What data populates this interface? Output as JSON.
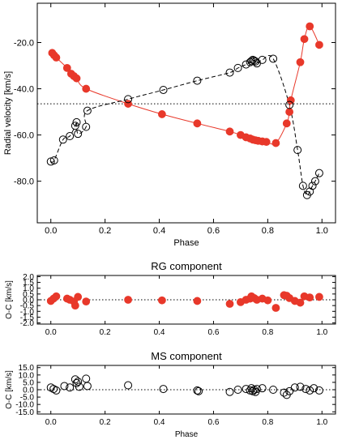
{
  "colors": {
    "primary": "#e8382a",
    "secondary": "#000000",
    "axis": "#000000"
  },
  "chart_data": [
    {
      "type": "scatter",
      "xlabel": "Phase",
      "ylabel": "Radial velocity [km/s]",
      "xlim": [
        -0.05,
        1.05
      ],
      "ylim": [
        -98,
        -3
      ],
      "xticks": [
        0.0,
        0.2,
        0.4,
        0.6,
        0.8,
        1.0
      ],
      "xtick_labels": [
        "0.0",
        "0.2",
        "0.4",
        "0.6",
        "0.8",
        "1.0"
      ],
      "yticks": [
        -80,
        -60,
        -40,
        -20
      ],
      "ytick_labels": [
        "-80.0",
        "-60.0",
        "-40.0",
        "-20.0"
      ],
      "reference_line": -46.5,
      "series": [
        {
          "style": "filled",
          "color": "#e8382a",
          "x": [
            0.005,
            0.012,
            0.02,
            0.06,
            0.075,
            0.085,
            0.095,
            0.13,
            0.285,
            0.41,
            0.54,
            0.66,
            0.7,
            0.72,
            0.735,
            0.745,
            0.755,
            0.765,
            0.78,
            0.795,
            0.83,
            0.87,
            0.88,
            0.885,
            0.92,
            0.935,
            0.955,
            0.99
          ],
          "y": [
            -24.5,
            -25.5,
            -26.5,
            -31.0,
            -33.5,
            -34.5,
            -35.5,
            -40.0,
            -46.5,
            -51.0,
            -55.0,
            -58.5,
            -60.0,
            -61.0,
            -61.5,
            -62.0,
            -62.3,
            -62.5,
            -62.8,
            -63.0,
            -63.5,
            -55.0,
            -50.0,
            -45.0,
            -28.5,
            -18.5,
            -13.0,
            -21.0
          ]
        },
        {
          "style": "open",
          "color": "#000000",
          "x": [
            0.0,
            0.012,
            0.045,
            0.07,
            0.09,
            0.095,
            0.1,
            0.13,
            0.135,
            0.285,
            0.415,
            0.54,
            0.66,
            0.69,
            0.72,
            0.735,
            0.74,
            0.745,
            0.75,
            0.755,
            0.76,
            0.78,
            0.82,
            0.88,
            0.91,
            0.93,
            0.945,
            0.955,
            0.965,
            0.975,
            0.99
          ],
          "y": [
            -71.5,
            -71.0,
            -62.0,
            -60.5,
            -56.0,
            -54.5,
            -59.5,
            -56.5,
            -49.5,
            -44.5,
            -40.5,
            -36.5,
            -33.0,
            -31.0,
            -29.5,
            -28.5,
            -28.0,
            -27.5,
            -27.8,
            -28.2,
            -29.0,
            -27.5,
            -27.0,
            -47.0,
            -66.5,
            -82.0,
            -86.0,
            -84.5,
            -82.0,
            -80.0,
            -76.5
          ]
        }
      ]
    },
    {
      "type": "scatter",
      "title": "RG component",
      "xlabel": "",
      "ylabel": "O-C [km/s]",
      "xlim": [
        -0.05,
        1.05
      ],
      "ylim": [
        -2.1,
        2.1
      ],
      "xticks": [
        0.0,
        0.2,
        0.4,
        0.6,
        0.8,
        1.0
      ],
      "xtick_labels": [
        "0.0",
        "0.2",
        "0.4",
        "0.6",
        "0.8",
        "1.0"
      ],
      "yticks": [
        -2.0,
        -1.5,
        -1.0,
        -0.5,
        0.0,
        0.5,
        1.0,
        1.5,
        2.0
      ],
      "ytick_labels": [
        "-2.0",
        "-1.5",
        "-1.0",
        "-0.5",
        "0.0",
        "0.5",
        "1.0",
        "1.5",
        "2.0"
      ],
      "reference_line": 0.0,
      "series": [
        {
          "style": "filled",
          "color": "#e8382a",
          "x": [
            0.0,
            0.01,
            0.02,
            0.06,
            0.07,
            0.085,
            0.09,
            0.1,
            0.13,
            0.285,
            0.41,
            0.54,
            0.66,
            0.7,
            0.72,
            0.735,
            0.74,
            0.75,
            0.76,
            0.78,
            0.8,
            0.83,
            0.86,
            0.87,
            0.88,
            0.9,
            0.92,
            0.935,
            0.955,
            0.99
          ],
          "y": [
            -0.1,
            0.1,
            0.3,
            0.1,
            0.0,
            -0.15,
            -0.5,
            0.25,
            -0.15,
            0.0,
            -0.05,
            -0.1,
            -0.35,
            -0.2,
            0.0,
            0.1,
            0.3,
            0.15,
            0.0,
            0.1,
            -0.05,
            -0.7,
            0.4,
            0.35,
            0.15,
            -0.1,
            -0.25,
            0.3,
            0.2,
            0.25
          ]
        }
      ]
    },
    {
      "type": "scatter",
      "title": "MS component",
      "xlabel": "Phase",
      "ylabel": "O-C [km/s]",
      "xlim": [
        -0.05,
        1.05
      ],
      "ylim": [
        -16.5,
        16.5
      ],
      "xticks": [
        0.0,
        0.2,
        0.4,
        0.6,
        0.8,
        1.0
      ],
      "xtick_labels": [
        "0.0",
        "0.2",
        "0.4",
        "0.6",
        "0.8",
        "1.0"
      ],
      "yticks": [
        -15.0,
        -10.0,
        -5.0,
        0.0,
        5.0,
        10.0,
        15.0
      ],
      "ytick_labels": [
        "-15.0",
        "-10.0",
        "-5.0",
        "0.0",
        "5.0",
        "10.0",
        "15.0"
      ],
      "reference_line": 0.0,
      "series": [
        {
          "style": "open",
          "color": "#000000",
          "x": [
            0.0,
            0.01,
            0.02,
            0.05,
            0.07,
            0.09,
            0.095,
            0.1,
            0.105,
            0.13,
            0.135,
            0.285,
            0.415,
            0.54,
            0.545,
            0.66,
            0.69,
            0.72,
            0.735,
            0.74,
            0.745,
            0.75,
            0.755,
            0.76,
            0.78,
            0.82,
            0.86,
            0.87,
            0.88,
            0.9,
            0.92,
            0.94,
            0.955,
            0.97,
            0.99
          ],
          "y": [
            1.5,
            0.5,
            -0.5,
            2.5,
            1.5,
            7.0,
            4.5,
            5.5,
            2.0,
            7.5,
            2.5,
            3.0,
            0.5,
            -0.5,
            -1.0,
            -1.5,
            0.0,
            0.5,
            -0.5,
            1.0,
            -1.0,
            0.0,
            -1.5,
            0.5,
            1.0,
            0.0,
            -2.0,
            -3.5,
            -1.0,
            1.5,
            2.0,
            0.5,
            -0.5,
            1.0,
            -0.5
          ]
        }
      ]
    }
  ]
}
